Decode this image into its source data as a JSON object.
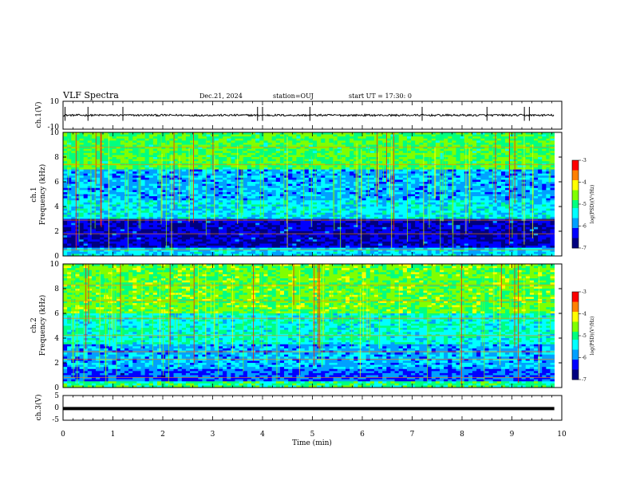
{
  "header": {
    "title": "VLF Spectra",
    "date": "Dec.21, 2024",
    "station": "station=OUJ",
    "start_ut": "start  UT =   17:30: 0"
  },
  "chart_data": [
    {
      "type": "line",
      "panel": "ch1-waveform",
      "ylabel": "ch.1(V)",
      "ylim": [
        -10,
        10
      ],
      "y_ticks": [
        "10",
        "-10"
      ],
      "baseline_v": 0,
      "spike_times_min": [
        0.04,
        0.5,
        1.2,
        3.9,
        4.0,
        4.95,
        7.2,
        8.5,
        9.25,
        9.35
      ]
    },
    {
      "type": "heatmap",
      "panel": "ch1-spectrogram",
      "ylabel_line1": "ch.1",
      "ylabel_line2": "Frequency (kHz)",
      "ylim": [
        0,
        10
      ],
      "y_ticks": [
        "0",
        "2",
        "4",
        "6",
        "8",
        "10"
      ],
      "colorbar": {
        "range": [
          -7,
          -3
        ],
        "ticks": [
          "-3",
          "-4",
          "-5",
          "-6",
          "-7"
        ],
        "label": "log(PSD)(V²/Hz)"
      }
    },
    {
      "type": "heatmap",
      "panel": "ch2-spectrogram",
      "ylabel_line1": "ch.2",
      "ylabel_line2": "Frequency (kHz)",
      "ylim": [
        0,
        10
      ],
      "y_ticks": [
        "0",
        "2",
        "4",
        "6",
        "8",
        "10"
      ],
      "colorbar": {
        "range": [
          -7,
          -3
        ],
        "ticks": [
          "-3",
          "-4",
          "-5",
          "-6",
          "-7"
        ],
        "label": "log(PSD)(V²/Hz)"
      }
    },
    {
      "type": "line",
      "panel": "ch3-waveform",
      "ylabel": "ch.3(V)",
      "ylim": [
        -5,
        5
      ],
      "y_ticks": [
        "5",
        "0",
        "-5"
      ],
      "constant_v": -0.3
    }
  ],
  "x_axis": {
    "label": "Time (min)",
    "range": [
      0,
      10
    ],
    "ticks": [
      "0",
      "1",
      "2",
      "3",
      "4",
      "5",
      "6",
      "7",
      "8",
      "9",
      "10"
    ],
    "data_end_min": 9.85
  },
  "colors": {
    "colormap": [
      "#000080",
      "#0000ff",
      "#00a0ff",
      "#00ffff",
      "#00ff80",
      "#80ff00",
      "#ffff00",
      "#ff8000",
      "#ff0000",
      "#ffffff"
    ]
  }
}
